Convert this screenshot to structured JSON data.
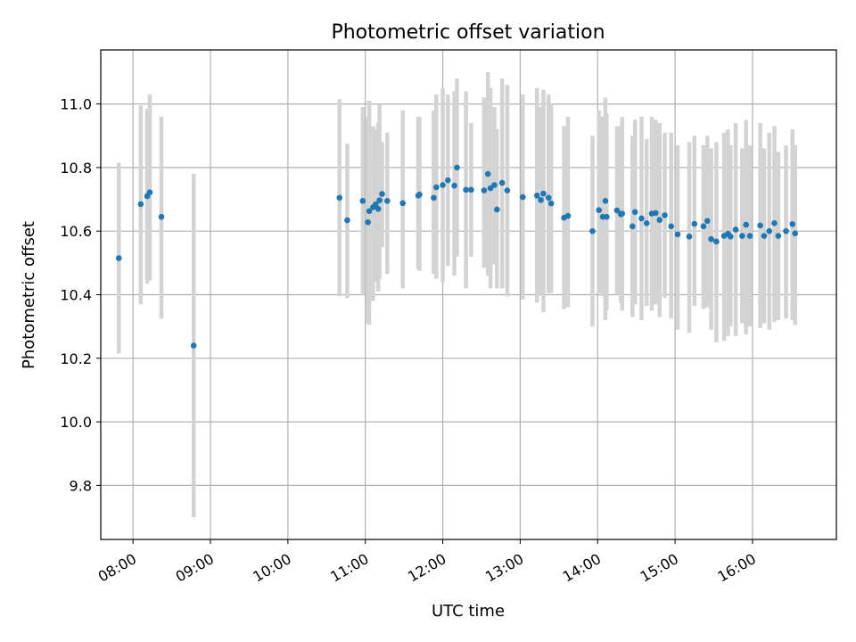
{
  "chart_data": {
    "type": "scatter",
    "title": "Photometric offset variation",
    "xlabel": "UTC time",
    "ylabel": "Photometric offset",
    "x_tick_labels": [
      "08:00",
      "09:00",
      "10:00",
      "11:00",
      "12:00",
      "13:00",
      "14:00",
      "15:00",
      "16:00"
    ],
    "y_tick_labels": [
      "9.8",
      "10.0",
      "10.2",
      "10.4",
      "10.6",
      "10.8",
      "11.0"
    ],
    "y_ticks": [
      9.8,
      10.0,
      10.2,
      10.4,
      10.6,
      10.8,
      11.0
    ],
    "xlim": [
      "07:35",
      "17:05"
    ],
    "ylim": [
      9.63,
      11.17
    ],
    "grid": true,
    "colors": {
      "point": "#1f77b4",
      "error_bar": "#d3d3d3",
      "grid": "#b0b0b0"
    },
    "series": [
      {
        "x": [
          "07:49",
          "08:06",
          "08:11",
          "08:13",
          "08:22",
          "08:47",
          "10:40",
          "10:46",
          "10:58",
          "11:02",
          "11:03",
          "11:06",
          "11:08",
          "11:10",
          "11:11",
          "11:13",
          "11:17",
          "11:29",
          "11:41",
          "11:42",
          "11:53",
          "11:55",
          "12:00",
          "12:04",
          "12:09",
          "12:11",
          "12:18",
          "12:22",
          "12:32",
          "12:35",
          "12:37",
          "12:40",
          "12:42",
          "12:46",
          "12:50",
          "13:02",
          "13:13",
          "13:16",
          "13:18",
          "13:22",
          "13:24",
          "13:34",
          "13:37",
          "13:56",
          "14:01",
          "14:04",
          "14:06",
          "14:07",
          "14:15",
          "14:18",
          "14:19",
          "14:27",
          "14:29",
          "14:34",
          "14:38",
          "14:42",
          "14:45",
          "14:48",
          "14:52",
          "14:57",
          "15:02",
          "15:11",
          "15:15",
          "15:22",
          "15:25",
          "15:28",
          "15:32",
          "15:38",
          "15:41",
          "15:43",
          "15:47",
          "15:52",
          "15:55",
          "15:58",
          "16:06",
          "16:09",
          "16:13",
          "16:17",
          "16:20",
          "16:26",
          "16:31",
          "16:33"
        ],
        "y": [
          10.515,
          10.685,
          10.71,
          10.722,
          10.645,
          10.24,
          10.705,
          10.634,
          10.695,
          10.628,
          10.663,
          10.675,
          10.684,
          10.67,
          10.697,
          10.717,
          10.695,
          10.688,
          10.712,
          10.715,
          10.705,
          10.738,
          10.745,
          10.76,
          10.743,
          10.8,
          10.73,
          10.73,
          10.728,
          10.78,
          10.735,
          10.745,
          10.668,
          10.752,
          10.728,
          10.707,
          10.712,
          10.698,
          10.718,
          10.705,
          10.687,
          10.642,
          10.648,
          10.6,
          10.666,
          10.645,
          10.695,
          10.645,
          10.665,
          10.653,
          10.655,
          10.615,
          10.66,
          10.64,
          10.625,
          10.655,
          10.657,
          10.635,
          10.65,
          10.615,
          10.59,
          10.583,
          10.623,
          10.615,
          10.632,
          10.575,
          10.567,
          10.585,
          10.592,
          10.583,
          10.605,
          10.585,
          10.62,
          10.585,
          10.618,
          10.585,
          10.6,
          10.625,
          10.585,
          10.6,
          10.622,
          10.593
        ],
        "yerr_low": [
          10.215,
          10.37,
          10.435,
          10.445,
          10.325,
          9.7,
          10.395,
          10.39,
          10.4,
          10.31,
          10.305,
          10.38,
          10.44,
          10.41,
          10.45,
          10.55,
          10.465,
          10.42,
          10.48,
          10.475,
          10.465,
          10.45,
          10.44,
          10.49,
          10.46,
          10.52,
          10.42,
          10.52,
          10.485,
          10.46,
          10.42,
          10.495,
          10.42,
          10.42,
          10.395,
          10.385,
          10.375,
          10.4,
          10.345,
          10.405,
          10.405,
          10.355,
          10.36,
          10.3,
          10.405,
          10.395,
          10.32,
          10.35,
          10.4,
          10.375,
          10.35,
          10.33,
          10.37,
          10.32,
          10.365,
          10.35,
          10.37,
          10.33,
          10.39,
          10.325,
          10.29,
          10.28,
          10.365,
          10.355,
          10.36,
          10.29,
          10.25,
          10.255,
          10.27,
          10.3,
          10.27,
          10.31,
          10.275,
          10.3,
          10.295,
          10.31,
          10.29,
          10.315,
          10.32,
          10.325,
          10.32,
          10.305
        ],
        "yerr_high": [
          10.815,
          10.995,
          10.985,
          11.03,
          10.96,
          10.78,
          11.015,
          10.875,
          10.99,
          10.96,
          11.01,
          10.93,
          10.92,
          10.94,
          11.0,
          10.88,
          10.91,
          10.98,
          10.96,
          10.96,
          10.98,
          11.03,
          11.05,
          11.03,
          11.04,
          11.08,
          11.04,
          10.94,
          11.02,
          11.1,
          11.05,
          10.99,
          10.92,
          11.08,
          11.06,
          11.03,
          11.05,
          10.99,
          11.045,
          11.03,
          11.0,
          10.93,
          10.96,
          10.9,
          10.98,
          10.96,
          11.02,
          10.97,
          10.93,
          10.93,
          10.96,
          10.9,
          10.95,
          10.96,
          10.89,
          10.96,
          10.95,
          10.94,
          10.91,
          10.91,
          10.87,
          10.88,
          10.9,
          10.87,
          10.9,
          10.86,
          10.88,
          10.91,
          10.92,
          10.87,
          10.94,
          10.86,
          10.95,
          10.87,
          10.94,
          10.86,
          10.91,
          10.93,
          10.85,
          10.87,
          10.92,
          10.87
        ]
      }
    ]
  }
}
